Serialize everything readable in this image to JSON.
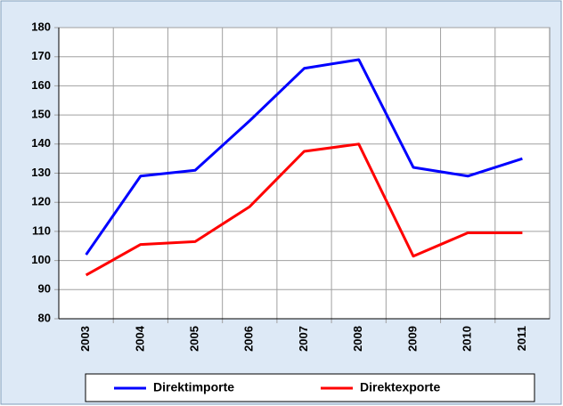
{
  "chart_data": {
    "type": "line",
    "categories": [
      "2003",
      "2004",
      "2005",
      "2006",
      "2007",
      "2008",
      "2009",
      "2010",
      "2011"
    ],
    "series": [
      {
        "name": "Direktimporte",
        "color": "#0000ff",
        "values": [
          102,
          129,
          131,
          148,
          166,
          169,
          132,
          129,
          135
        ]
      },
      {
        "name": "Direktexporte",
        "color": "#ff0000",
        "values": [
          95,
          105.5,
          106.5,
          118.5,
          137.5,
          140,
          101.5,
          109.5,
          109.5
        ]
      }
    ],
    "ylim": [
      80,
      180
    ],
    "yticks": [
      80,
      90,
      100,
      110,
      120,
      130,
      140,
      150,
      160,
      170,
      180
    ],
    "grid": true,
    "legend": "bottom"
  }
}
